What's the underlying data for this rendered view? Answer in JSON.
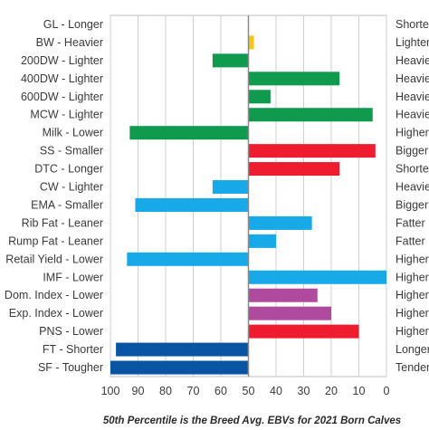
{
  "chart_data": {
    "type": "bar",
    "orientation": "horizontal",
    "title": "",
    "caption": "50th Percentile is the Breed Avg. EBVs for 2021 Born Calves",
    "xlim": [
      100,
      0
    ],
    "x_ticks": [
      "100",
      "90",
      "80",
      "70",
      "60",
      "50",
      "40",
      "30",
      "20",
      "10",
      "0"
    ],
    "baseline": 50,
    "grid": true,
    "rows": [
      {
        "left": "GL - Longer",
        "right": "Shorter",
        "value": 50,
        "color": "#ffffff"
      },
      {
        "left": "BW - Heavier",
        "right": "Lighter",
        "value": 48,
        "color": "#f5c518"
      },
      {
        "left": "200DW - Lighter",
        "right": "Heavier",
        "value": 63,
        "color": "#0f9a4e"
      },
      {
        "left": "400DW - Lighter",
        "right": "Heavier",
        "value": 17,
        "color": "#0f9a4e"
      },
      {
        "left": "600DW - Lighter",
        "right": "Heavier",
        "value": 42,
        "color": "#0f9a4e"
      },
      {
        "left": "MCW - Lighter",
        "right": "Heavier",
        "value": 5,
        "color": "#0f9a4e"
      },
      {
        "left": "Milk - Lower",
        "right": "Higher",
        "value": 93,
        "color": "#0f9a4e"
      },
      {
        "left": "SS - Smaller",
        "right": "Bigger",
        "value": 4,
        "color": "#ee1c2e"
      },
      {
        "left": "DTC - Longer",
        "right": "Shorter",
        "value": 17,
        "color": "#ee1c2e"
      },
      {
        "left": "CW - Lighter",
        "right": "Heavier",
        "value": 63,
        "color": "#17a9e8"
      },
      {
        "left": "EMA - Smaller",
        "right": "Bigger",
        "value": 91,
        "color": "#17a9e8"
      },
      {
        "left": "Rib Fat - Leaner",
        "right": "Fatter",
        "value": 27,
        "color": "#17a9e8"
      },
      {
        "left": "Rump Fat - Leaner",
        "right": "Fatter",
        "value": 40,
        "color": "#17a9e8"
      },
      {
        "left": "Retail Yield - Lower",
        "right": "Higher",
        "value": 94,
        "color": "#17a9e8"
      },
      {
        "left": "IMF - Lower",
        "right": "Higher",
        "value": 0,
        "color": "#17a9e8"
      },
      {
        "left": "Dom. Index - Lower",
        "right": "Higher",
        "value": 25,
        "color": "#b04a9e"
      },
      {
        "left": "Exp. Index - Lower",
        "right": "Higher",
        "value": 20,
        "color": "#b04a9e"
      },
      {
        "left": "PNS - Lower",
        "right": "Higher",
        "value": 10,
        "color": "#ee1c2e"
      },
      {
        "left": "FT - Shorter",
        "right": "Longer",
        "value": 98,
        "color": "#0a55a3"
      },
      {
        "left": "SF - Tougher",
        "right": "Tender",
        "value": 100,
        "color": "#0a55a3"
      }
    ]
  }
}
